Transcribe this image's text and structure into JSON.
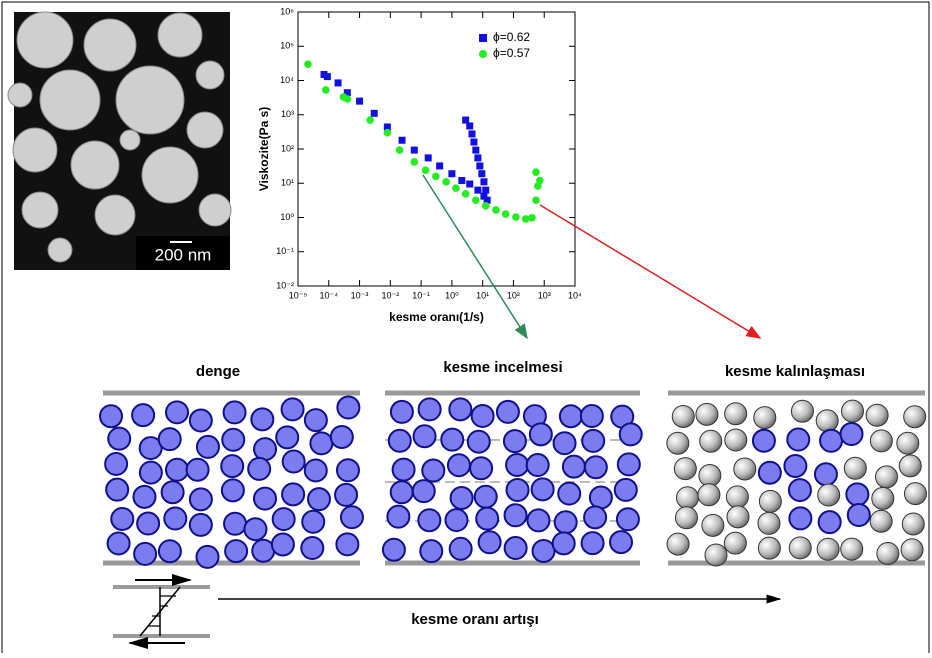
{
  "micrograph": {
    "scale_label": "200 nm"
  },
  "chart_data": {
    "type": "scatter",
    "xlabel": "kesme oranı(1/s)",
    "ylabel": "Viskozite(Pa s)",
    "log_x": true,
    "log_y": true,
    "xlim": [
      1e-05,
      10000
    ],
    "ylim": [
      0.01,
      1000000
    ],
    "xticks": [
      {
        "value": 1e-05,
        "label": "10⁻⁵"
      },
      {
        "value": 0.0001,
        "label": "10⁻⁴"
      },
      {
        "value": 0.001,
        "label": "10⁻³"
      },
      {
        "value": 0.01,
        "label": "10⁻²"
      },
      {
        "value": 0.1,
        "label": "10⁻¹"
      },
      {
        "value": 1,
        "label": "10⁰"
      },
      {
        "value": 10,
        "label": "10¹"
      },
      {
        "value": 100,
        "label": "10²"
      },
      {
        "value": 1000,
        "label": "10³"
      },
      {
        "value": 10000,
        "label": "10⁴"
      }
    ],
    "yticks": [
      {
        "value": 0.01,
        "label": "10⁻²"
      },
      {
        "value": 0.1,
        "label": "10⁻¹"
      },
      {
        "value": 1,
        "label": "10⁰"
      },
      {
        "value": 10,
        "label": "10¹"
      },
      {
        "value": 100,
        "label": "10²"
      },
      {
        "value": 1000,
        "label": "10³"
      },
      {
        "value": 10000,
        "label": "10⁴"
      },
      {
        "value": 100000,
        "label": "10⁵"
      },
      {
        "value": 1000000,
        "label": "10⁶"
      }
    ],
    "legend": "upper right",
    "series": [
      {
        "name": "ϕ=0.62",
        "color": "#1010e0",
        "marker": "square",
        "x": [
          7e-05,
          9e-05,
          0.0002,
          0.0004,
          0.001,
          0.003,
          0.008,
          0.024,
          0.06,
          0.17,
          0.4,
          1,
          2.1,
          3.8,
          7,
          11,
          14,
          2.8,
          3.8,
          4.5,
          5.2,
          6,
          7,
          8.1,
          9.4,
          11,
          12.6
        ],
        "values": [
          15000,
          13000,
          8500,
          4400,
          2500,
          1100,
          440,
          180,
          93,
          55,
          32,
          19,
          12,
          9.5,
          6.3,
          4.2,
          3.2,
          700,
          470,
          275,
          160,
          93,
          55,
          32,
          19,
          11,
          6.3
        ]
      },
      {
        "name": "ϕ=0.57",
        "color": "#22ee22",
        "marker": "circle",
        "x": [
          2.1e-05,
          8e-05,
          0.0003,
          0.0004,
          0.0022,
          0.008,
          0.02,
          0.06,
          0.14,
          0.3,
          0.65,
          1.35,
          2.8,
          6,
          12.6,
          27,
          56,
          120,
          250,
          400,
          540,
          620,
          720,
          540
        ],
        "values": [
          30000,
          5300,
          3300,
          2900,
          700,
          300,
          93,
          42,
          24,
          16,
          11,
          7.2,
          4.9,
          3.2,
          2.2,
          1.66,
          1.26,
          1.03,
          0.91,
          0.98,
          3.2,
          8.3,
          12,
          21
        ]
      }
    ]
  },
  "diagram": {
    "panels": [
      {
        "title": "denge"
      },
      {
        "title": "kesme incelmesi"
      },
      {
        "title": "kesme kalınlaşması"
      }
    ],
    "axis_label": "kesme oranı artışı"
  }
}
